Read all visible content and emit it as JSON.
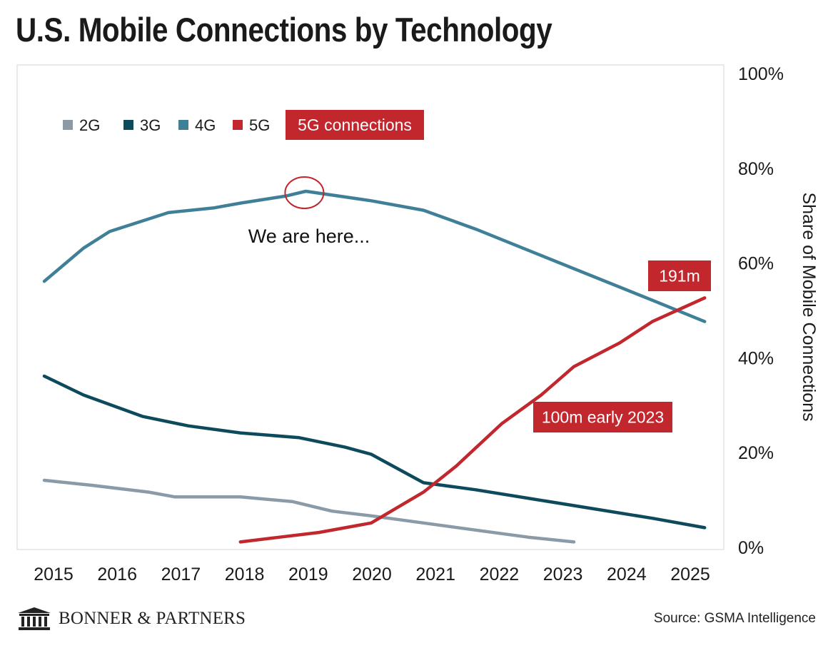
{
  "header": {
    "title": "U.S. Mobile Connections by Technology"
  },
  "footer": {
    "brand": "BONNER & PARTNERS",
    "source": "Source: GSMA Intelligence"
  },
  "colors": {
    "2G": "#8a9aa6",
    "3G": "#0d4a5c",
    "4G": "#3f8098",
    "5G": "#c1272d"
  },
  "chart_data": {
    "type": "line",
    "x_ticks": [
      "2015",
      "2016",
      "2017",
      "2018",
      "2019",
      "2020",
      "2021",
      "2022",
      "2023",
      "2024",
      "2025"
    ],
    "ylim": [
      0,
      100
    ],
    "y_ticks": [
      "0%",
      "20%",
      "40%",
      "60%",
      "80%",
      "100%"
    ],
    "ylabel": "Share of Mobile Connections",
    "ylabel_position": "right",
    "grid": false,
    "legend": {
      "placement": "top-left",
      "entries": [
        "2G",
        "3G",
        "4G",
        "5G"
      ]
    },
    "series": [
      {
        "name": "2G",
        "x": [
          2015,
          2015.7,
          2016.6,
          2017,
          2018,
          2018.8,
          2019.4,
          2020,
          2020.8,
          2021.6,
          2022.4,
          2023.1
        ],
        "y": [
          14,
          13,
          11.5,
          10.5,
          10.5,
          9.5,
          7.5,
          6.5,
          5,
          3.5,
          2,
          1
        ]
      },
      {
        "name": "3G",
        "x": [
          2015,
          2015.6,
          2016.5,
          2017.2,
          2018,
          2018.9,
          2019.6,
          2020,
          2020.8,
          2021.6,
          2022.5,
          2023.4,
          2024.3,
          2025.1
        ],
        "y": [
          36,
          32,
          27.5,
          25.5,
          24,
          23,
          21,
          19.5,
          13.5,
          12,
          10,
          8,
          6,
          4
        ]
      },
      {
        "name": "4G",
        "x": [
          2015,
          2015.6,
          2016,
          2016.9,
          2017.6,
          2018,
          2018.7,
          2019,
          2020,
          2020.8,
          2021.6,
          2022.5,
          2023.4,
          2024.3,
          2025.1
        ],
        "y": [
          56,
          63,
          66.5,
          70.5,
          71.5,
          72.5,
          74,
          75,
          73,
          71,
          67,
          62,
          57,
          52,
          47.5
        ]
      },
      {
        "name": "5G",
        "x": [
          2018,
          2018.6,
          2019.2,
          2020,
          2020.8,
          2021.3,
          2022,
          2022.6,
          2023.1,
          2023.8,
          2024.3,
          2025.1
        ],
        "y": [
          1,
          2,
          3,
          5,
          11.5,
          17,
          26,
          32,
          38,
          43,
          47.5,
          52.5
        ]
      }
    ],
    "annotations": [
      {
        "text": "5G connections",
        "kind": "box",
        "placement": "legend-row"
      },
      {
        "text": "We are here...",
        "kind": "text",
        "x": 2019,
        "y": 66.5
      },
      {
        "text": "100m early 2023",
        "kind": "box",
        "x": 2023.4,
        "y": 27.5
      },
      {
        "text": "191m",
        "kind": "box",
        "x": 2025,
        "y": 57
      }
    ],
    "highlight": {
      "series": "4G",
      "x": 2019,
      "y": 75
    }
  }
}
